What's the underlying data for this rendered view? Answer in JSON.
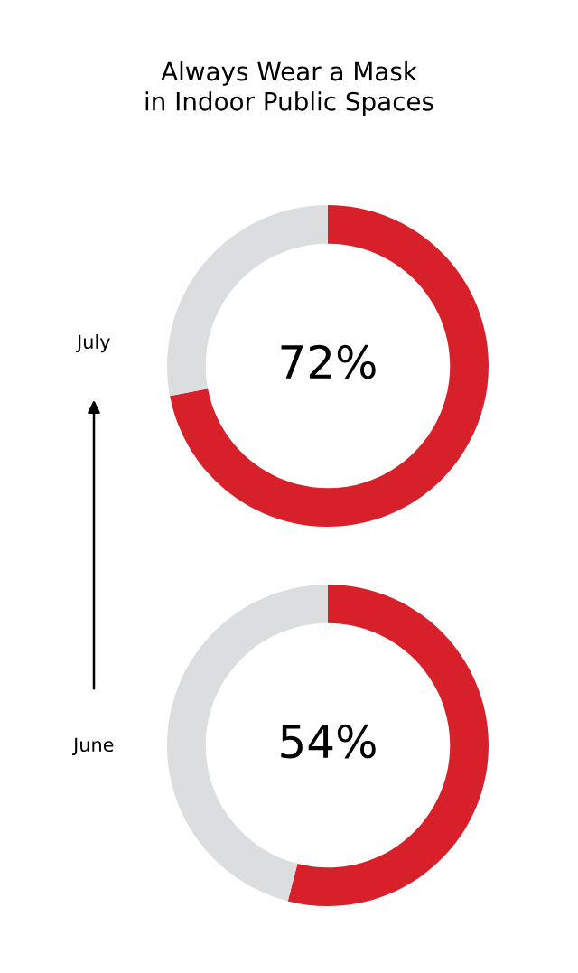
{
  "chart_data": [
    {
      "type": "donut",
      "title": "Always Wear a Mask\nin Indoor Public Spaces",
      "categories": [
        null,
        null
      ],
      "values": [
        72,
        28
      ],
      "colors": [
        "#d7202a",
        "#dcdddf"
      ],
      "value_labels": [
        "72%",
        null
      ],
      "annotations": [
        "July"
      ]
    },
    {
      "type": "donut",
      "categories": [
        null,
        null
      ],
      "values": [
        54,
        46
      ],
      "colors": [
        "#d7202a",
        "#dcdddf"
      ],
      "value_labels": [
        "54%",
        null
      ],
      "annotations": [
        "June"
      ]
    }
  ]
}
